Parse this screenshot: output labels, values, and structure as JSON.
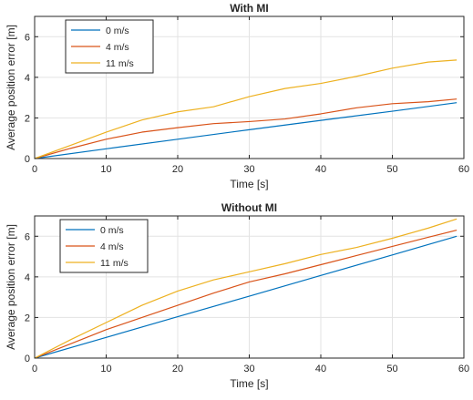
{
  "chart_data": [
    {
      "type": "line",
      "title": "With MI",
      "xlabel": "Time [s]",
      "ylabel": "Average position error [m]",
      "xlim": [
        0,
        60
      ],
      "ylim": [
        0,
        7
      ],
      "xticks": [
        0,
        10,
        20,
        30,
        40,
        50,
        60
      ],
      "xtick_labels": [
        "0",
        "10",
        "20",
        "30",
        "40",
        "50",
        "60"
      ],
      "yticks": [
        0,
        2,
        4,
        6
      ],
      "ytick_labels": [
        "0",
        "2",
        "4",
        "6"
      ],
      "grid": true,
      "legend_position": "top-left",
      "series": [
        {
          "name": "0 m/s",
          "color": "#0072BD",
          "x": [
            0,
            10,
            20,
            30,
            40,
            50,
            59
          ],
          "y": [
            0,
            0.48,
            0.95,
            1.42,
            1.88,
            2.33,
            2.75
          ]
        },
        {
          "name": "4 m/s",
          "color": "#D95319",
          "x": [
            0,
            5,
            10,
            15,
            20,
            25,
            30,
            35,
            40,
            45,
            50,
            55,
            59
          ],
          "y": [
            0,
            0.5,
            0.95,
            1.3,
            1.52,
            1.72,
            1.82,
            1.95,
            2.2,
            2.5,
            2.7,
            2.8,
            2.93
          ]
        },
        {
          "name": "11 m/s",
          "color": "#EDB120",
          "x": [
            0,
            5,
            10,
            15,
            20,
            25,
            30,
            35,
            40,
            45,
            50,
            55,
            59
          ],
          "y": [
            0,
            0.65,
            1.3,
            1.9,
            2.3,
            2.55,
            3.05,
            3.45,
            3.7,
            4.05,
            4.45,
            4.75,
            4.85
          ]
        }
      ]
    },
    {
      "type": "line",
      "title": "Without MI",
      "xlabel": "Time [s]",
      "ylabel": "Average position error [m]",
      "xlim": [
        0,
        60
      ],
      "ylim": [
        0,
        7
      ],
      "xticks": [
        0,
        10,
        20,
        30,
        40,
        50,
        60
      ],
      "xtick_labels": [
        "0",
        "10",
        "20",
        "30",
        "40",
        "50",
        "60"
      ],
      "yticks": [
        0,
        2,
        4,
        6
      ],
      "ytick_labels": [
        "0",
        "2",
        "4",
        "6"
      ],
      "grid": true,
      "legend_position": "top-left",
      "series": [
        {
          "name": "0 m/s",
          "color": "#0072BD",
          "x": [
            0,
            10,
            20,
            30,
            40,
            50,
            59
          ],
          "y": [
            0,
            1.02,
            2.04,
            3.05,
            4.07,
            5.08,
            6.0
          ]
        },
        {
          "name": "4 m/s",
          "color": "#D95319",
          "x": [
            0,
            5,
            10,
            15,
            20,
            25,
            30,
            35,
            40,
            45,
            50,
            55,
            59
          ],
          "y": [
            0,
            0.7,
            1.4,
            2.0,
            2.6,
            3.2,
            3.75,
            4.15,
            4.6,
            5.05,
            5.5,
            5.95,
            6.3
          ]
        },
        {
          "name": "11 m/s",
          "color": "#EDB120",
          "x": [
            0,
            5,
            10,
            15,
            20,
            25,
            30,
            35,
            40,
            45,
            50,
            55,
            59
          ],
          "y": [
            0,
            0.9,
            1.75,
            2.6,
            3.3,
            3.85,
            4.25,
            4.65,
            5.1,
            5.45,
            5.9,
            6.4,
            6.85
          ]
        }
      ]
    }
  ]
}
